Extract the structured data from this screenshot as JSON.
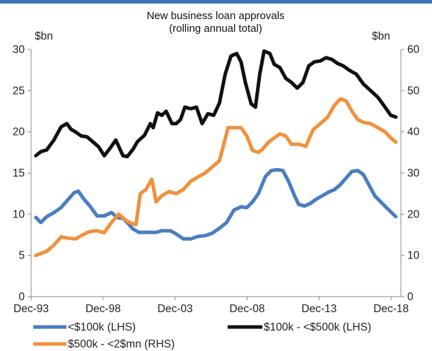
{
  "colors": {
    "top_rule": "#3b74b9"
  },
  "chart_data": {
    "type": "line",
    "title": "New business loan approvals",
    "subtitle": "(rolling annual total)",
    "y_left_label": "$bn",
    "y_right_label": "$bn",
    "ylim_left": [
      0,
      30
    ],
    "ylim_right": [
      0,
      60
    ],
    "y_left_ticks": [
      "0",
      "5",
      "10",
      "15",
      "20",
      "25",
      "30"
    ],
    "y_right_ticks": [
      "0",
      "10",
      "20",
      "30",
      "40",
      "50",
      "60"
    ],
    "x_ticks": [
      "Dec-93",
      "Dec-98",
      "Dec-03",
      "Dec-08",
      "Dec-13",
      "Dec-18"
    ],
    "x_tick_values": [
      1993.92,
      1998.92,
      2003.92,
      2008.92,
      2013.92,
      2018.92
    ],
    "xlim": [
      1993.92,
      2019.6
    ],
    "grid": false,
    "legend_position": "bottom",
    "series": [
      {
        "name": "<$100k (LHS)",
        "axis": "left",
        "color": "#4a7dc0",
        "x": [
          1994.25,
          1994.6,
          1995.0,
          1995.5,
          1996.0,
          1996.5,
          1996.9,
          1997.2,
          1997.6,
          1998.0,
          1998.5,
          1999.0,
          1999.5,
          1999.9,
          2000.3,
          2000.7,
          2001.0,
          2001.4,
          2002.0,
          2002.6,
          2003.0,
          2003.6,
          2004.0,
          2004.5,
          2005.0,
          2005.5,
          2006.0,
          2006.5,
          2007.0,
          2007.5,
          2008.0,
          2008.5,
          2008.9,
          2009.3,
          2009.7,
          2010.2,
          2010.6,
          2011.0,
          2011.4,
          2011.8,
          2012.2,
          2012.5,
          2012.9,
          2013.3,
          2013.7,
          2014.2,
          2014.6,
          2015.0,
          2015.4,
          2015.8,
          2016.2,
          2016.6,
          2017.0,
          2017.4,
          2017.8,
          2018.2,
          2018.6,
          2018.95,
          2019.25
        ],
        "y": [
          9.6,
          9.0,
          9.7,
          10.2,
          10.8,
          11.8,
          12.6,
          12.8,
          11.8,
          11.0,
          9.8,
          9.8,
          10.2,
          9.6,
          9.5,
          8.8,
          8.2,
          7.8,
          7.8,
          7.8,
          8.0,
          8.0,
          7.6,
          7.0,
          7.0,
          7.3,
          7.4,
          7.7,
          8.3,
          9.0,
          10.5,
          10.9,
          10.8,
          11.5,
          12.5,
          14.6,
          15.3,
          15.4,
          15.3,
          14.0,
          12.3,
          11.2,
          11.0,
          11.3,
          11.8,
          12.3,
          12.7,
          13.0,
          13.6,
          14.4,
          15.2,
          15.3,
          14.8,
          13.5,
          12.2,
          11.5,
          10.8,
          10.2,
          9.7
        ]
      },
      {
        "name": "$100k - <$500k (LHS)",
        "axis": "left",
        "color": "#111111",
        "x": [
          1994.25,
          1994.6,
          1995.0,
          1995.5,
          1996.0,
          1996.4,
          1996.7,
          1997.0,
          1997.4,
          1997.8,
          1998.2,
          1998.6,
          1999.0,
          1999.4,
          1999.8,
          2000.3,
          2000.6,
          2001.0,
          2001.3,
          2001.8,
          2002.2,
          2002.4,
          2002.7,
          2003.0,
          2003.3,
          2003.7,
          2004.0,
          2004.3,
          2004.6,
          2005.0,
          2005.4,
          2005.8,
          2006.2,
          2006.6,
          2007.0,
          2007.4,
          2007.8,
          2008.2,
          2008.5,
          2008.8,
          2009.2,
          2009.5,
          2009.8,
          2010.1,
          2010.5,
          2010.8,
          2011.2,
          2011.6,
          2012.0,
          2012.4,
          2012.8,
          2013.2,
          2013.6,
          2014.0,
          2014.4,
          2014.8,
          2015.2,
          2015.6,
          2016.0,
          2016.5,
          2017.0,
          2017.5,
          2018.0,
          2018.5,
          2018.9,
          2019.25
        ],
        "y": [
          17.1,
          17.6,
          17.8,
          19.0,
          20.6,
          21.0,
          20.3,
          20.0,
          19.5,
          19.4,
          18.8,
          18.2,
          17.1,
          18.0,
          19.0,
          17.1,
          17.0,
          17.9,
          18.8,
          19.6,
          21.0,
          20.5,
          22.3,
          22.0,
          22.5,
          21.0,
          21.0,
          21.5,
          23.0,
          22.8,
          23.0,
          21.0,
          22.2,
          22.0,
          23.5,
          27.0,
          29.2,
          29.5,
          28.5,
          26.0,
          23.4,
          23.0,
          27.0,
          29.8,
          29.5,
          28.2,
          27.8,
          26.5,
          26.0,
          25.3,
          26.0,
          28.0,
          28.5,
          28.6,
          29.0,
          28.8,
          28.3,
          28.0,
          27.5,
          27.0,
          25.8,
          25.0,
          24.2,
          23.0,
          22.0,
          21.8
        ]
      },
      {
        "name": "$500k - <2$mn (RHS)",
        "axis": "right",
        "color": "#f0913c",
        "x": [
          1994.25,
          1994.6,
          1995.0,
          1995.5,
          1996.0,
          1996.5,
          1997.0,
          1997.5,
          1998.0,
          1998.5,
          1999.0,
          1999.5,
          2000.0,
          2000.5,
          2000.9,
          2001.2,
          2001.5,
          2001.9,
          2002.3,
          2002.6,
          2003.0,
          2003.5,
          2004.0,
          2004.5,
          2005.0,
          2005.5,
          2006.0,
          2006.5,
          2007.0,
          2007.3,
          2007.6,
          2008.0,
          2008.5,
          2008.9,
          2009.3,
          2009.7,
          2010.0,
          2010.4,
          2010.8,
          2011.2,
          2011.6,
          2012.0,
          2012.5,
          2013.0,
          2013.5,
          2014.0,
          2014.5,
          2015.0,
          2015.4,
          2015.8,
          2016.2,
          2016.6,
          2017.0,
          2017.5,
          2018.0,
          2018.5,
          2018.9,
          2019.25
        ],
        "y": [
          10.0,
          10.5,
          11.0,
          12.5,
          14.5,
          14.2,
          14.0,
          15.0,
          15.8,
          16.0,
          15.5,
          18.0,
          20.0,
          18.5,
          17.8,
          17.5,
          25.0,
          26.0,
          28.5,
          23.0,
          24.5,
          25.5,
          25.0,
          26.0,
          28.0,
          29.0,
          30.0,
          31.5,
          33.0,
          37.0,
          41.0,
          41.0,
          41.0,
          39.0,
          35.5,
          35.0,
          35.8,
          37.5,
          38.5,
          39.5,
          39.0,
          37.0,
          37.0,
          36.5,
          40.5,
          42.0,
          43.5,
          46.5,
          48.0,
          47.5,
          45.0,
          43.0,
          42.3,
          42.0,
          41.0,
          40.0,
          38.5,
          37.5
        ]
      }
    ]
  }
}
